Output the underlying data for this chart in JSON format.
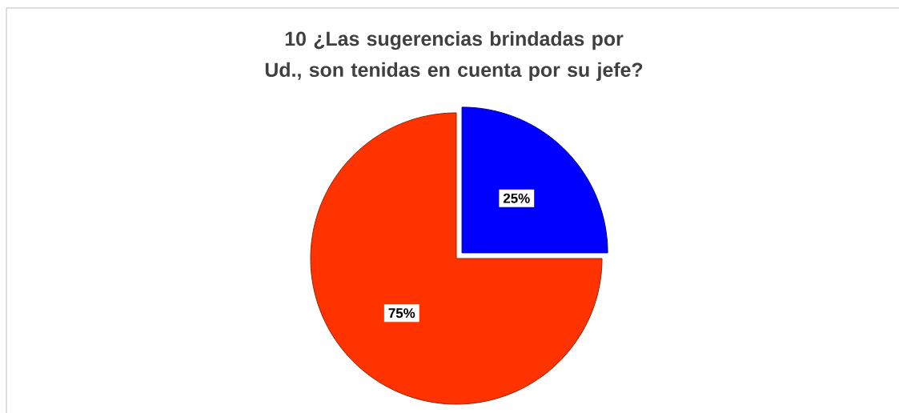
{
  "chart_data": {
    "type": "pie",
    "title": "10 ¿Las sugerencias brindadas por Ud., son tenidas en cuenta por su jefe?",
    "categories": [
      null,
      null
    ],
    "values": [
      25,
      75
    ],
    "colors": [
      "#0000ff",
      "#ff3300"
    ],
    "value_labels": [
      "25%",
      "75%"
    ]
  }
}
